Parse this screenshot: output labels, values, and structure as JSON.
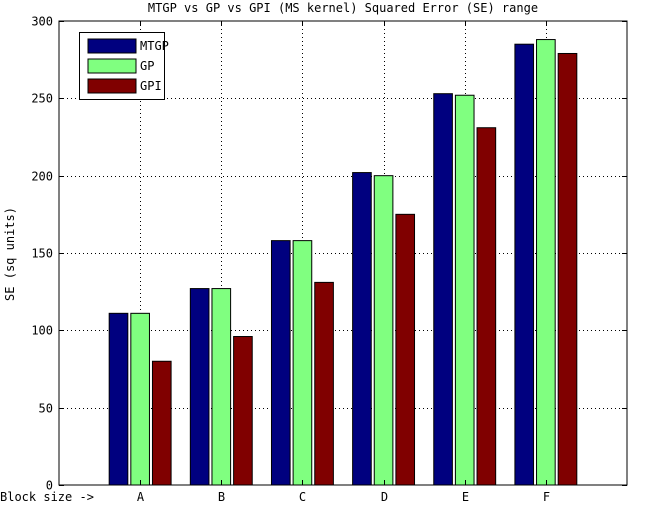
{
  "chart_data": {
    "type": "bar",
    "title": "MTGP vs GP vs GPI (MS kernel) Squared Error (SE) range",
    "xlabel": "Block size ->",
    "ylabel": "SE (sq units)",
    "categories": [
      "A",
      "B",
      "C",
      "D",
      "E",
      "F"
    ],
    "xlim": [
      0,
      7
    ],
    "ylim": [
      0,
      300
    ],
    "yticks": [
      0,
      50,
      100,
      150,
      200,
      250,
      300
    ],
    "grid": true,
    "legend_position": "top-left",
    "series": [
      {
        "name": "MTGP",
        "color": "#00007f",
        "values": [
          111,
          127,
          158,
          202,
          253,
          285
        ]
      },
      {
        "name": "GP",
        "color": "#80ff80",
        "values": [
          111,
          127,
          158,
          200,
          252,
          288
        ]
      },
      {
        "name": "GPI",
        "color": "#800000",
        "values": [
          80,
          96,
          131,
          175,
          231,
          279
        ]
      }
    ]
  }
}
